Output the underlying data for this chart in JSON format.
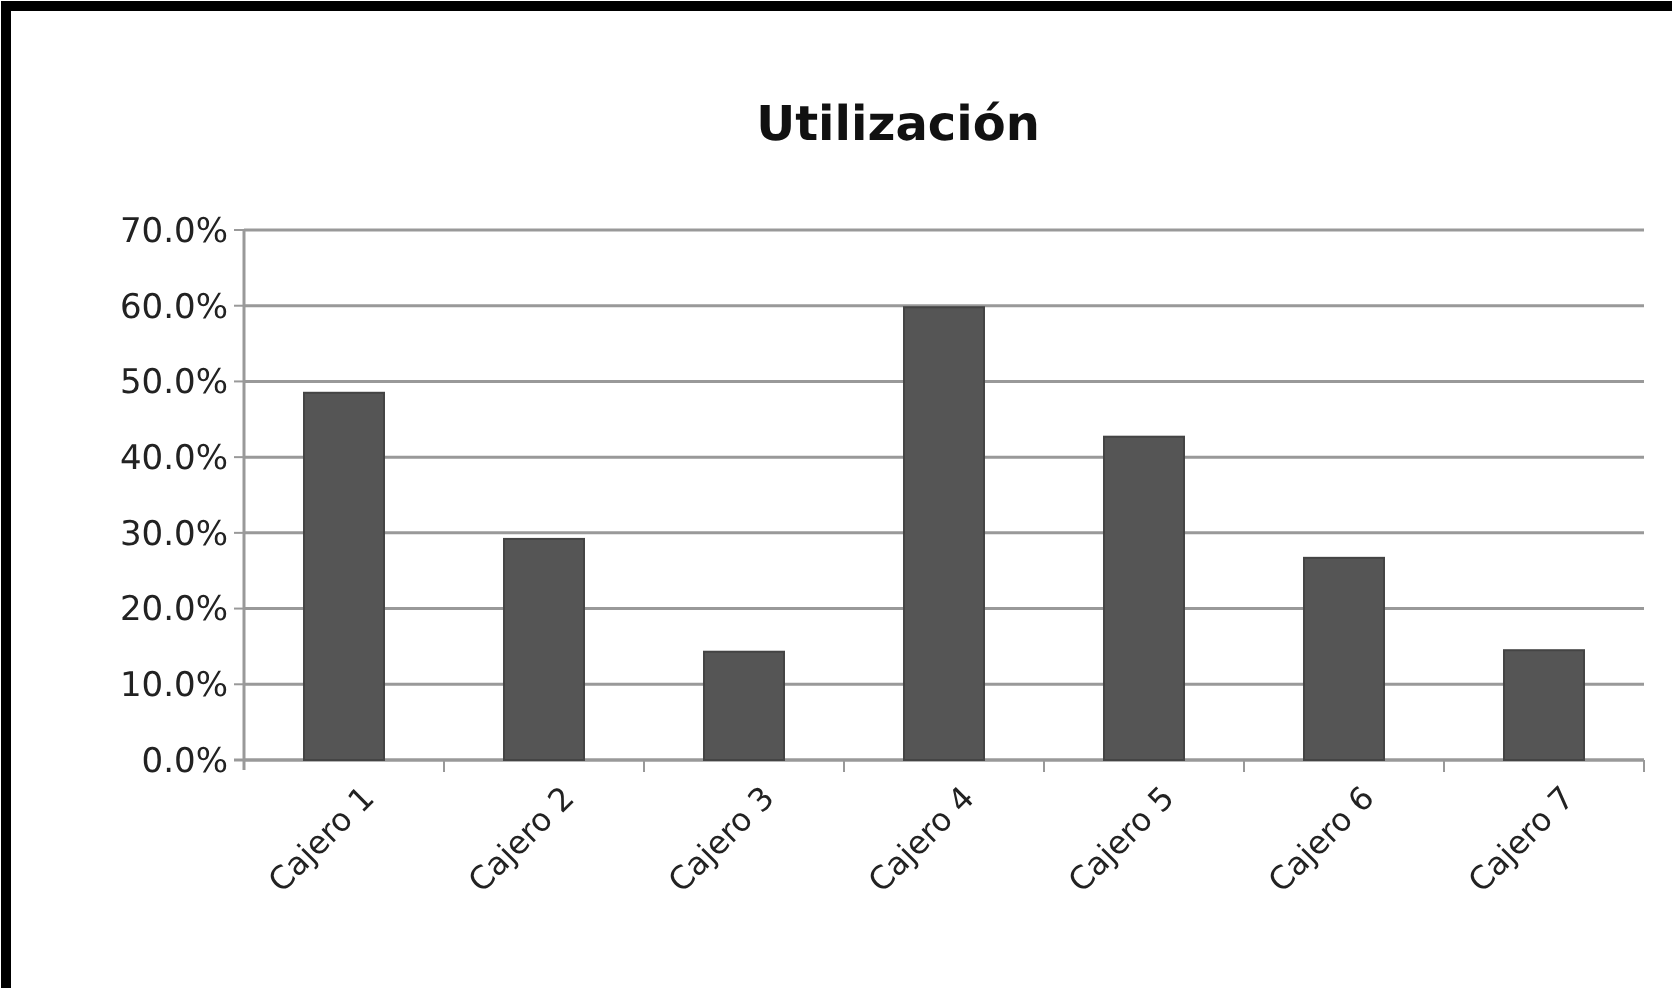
{
  "chart_data": {
    "type": "bar",
    "title": "Utilización",
    "categories": [
      "Cajero 1",
      "Cajero 2",
      "Cajero 3",
      "Cajero 4",
      "Cajero 5",
      "Cajero 6",
      "Cajero 7"
    ],
    "values": [
      48.5,
      29.2,
      14.3,
      59.8,
      42.7,
      26.7,
      14.5
    ],
    "color": "#555555",
    "ylim": [
      0,
      70
    ],
    "yticks": [
      {
        "value": 0,
        "label": "0.0%"
      },
      {
        "value": 10,
        "label": "10.0%"
      },
      {
        "value": 20,
        "label": "20.0%"
      },
      {
        "value": 30,
        "label": "30.0%"
      },
      {
        "value": 40,
        "label": "40.0%"
      },
      {
        "value": 50,
        "label": "50.0%"
      },
      {
        "value": 60,
        "label": "60.0%"
      },
      {
        "value": 70,
        "label": "70.0%"
      }
    ],
    "grid": "y"
  }
}
